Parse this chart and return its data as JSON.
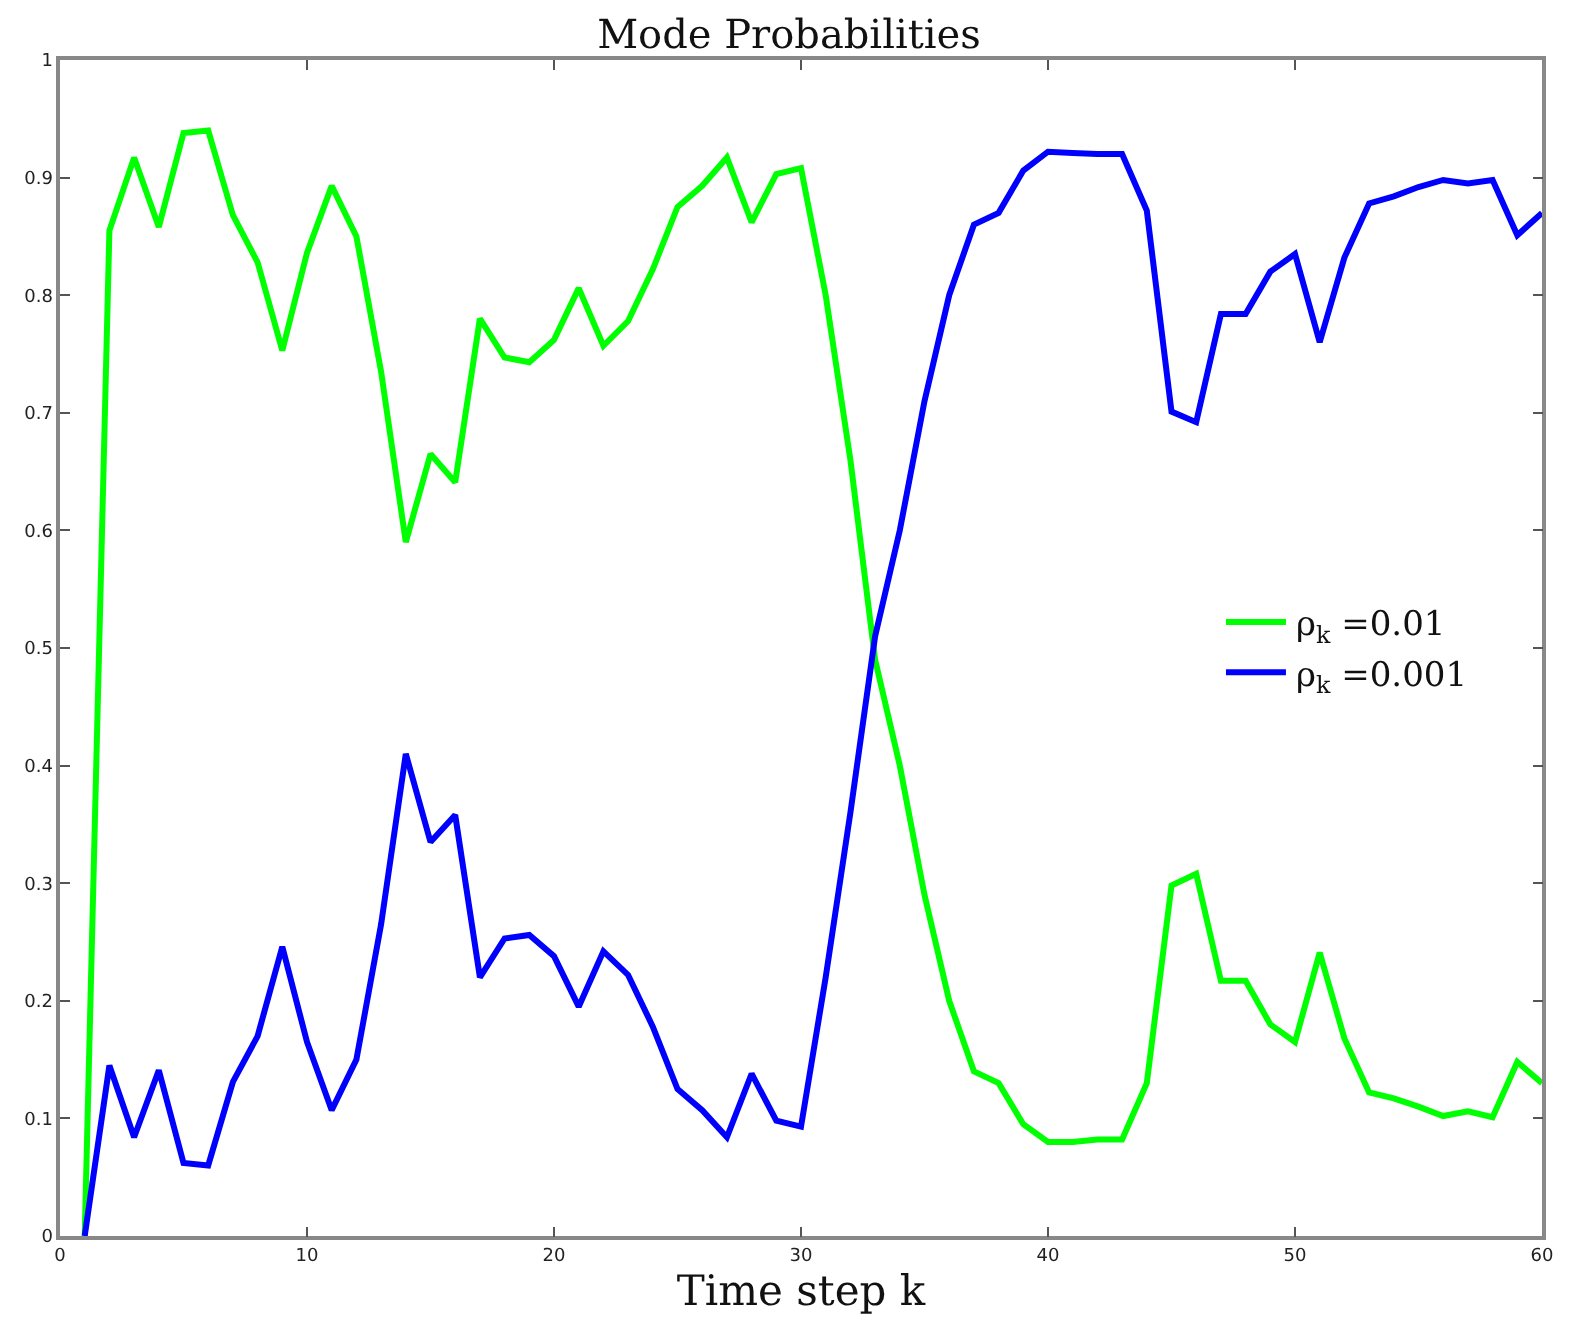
{
  "chart_data": {
    "type": "line",
    "title": "Mode Probabilities",
    "xlabel": "Time step k",
    "x": [
      1,
      2,
      3,
      4,
      5,
      6,
      7,
      8,
      9,
      10,
      11,
      12,
      13,
      14,
      15,
      16,
      17,
      18,
      19,
      20,
      21,
      22,
      23,
      24,
      25,
      26,
      27,
      28,
      29,
      30,
      31,
      32,
      33,
      34,
      35,
      36,
      37,
      38,
      39,
      40,
      41,
      42,
      43,
      44,
      45,
      46,
      47,
      48,
      49,
      50,
      51,
      52,
      53,
      54,
      55,
      56,
      57,
      58,
      59,
      60
    ],
    "series": [
      {
        "name": "ρ$_{k}$ =0.01",
        "color": "#00ff00",
        "values": [
          0,
          0.855,
          0.917,
          0.858,
          0.938,
          0.94,
          0.868,
          0.828,
          0.753,
          0.836,
          0.893,
          0.85,
          0.735,
          0.59,
          0.665,
          0.641,
          0.78,
          0.747,
          0.743,
          0.762,
          0.806,
          0.757,
          0.778,
          0.822,
          0.875,
          0.893,
          0.917,
          0.862,
          0.903,
          0.908,
          0.8,
          0.66,
          0.49,
          0.4,
          0.29,
          0.2,
          0.14,
          0.13,
          0.095,
          0.08,
          0.08,
          0.082,
          0.082,
          0.13,
          0.298,
          0.308,
          0.217,
          0.217,
          0.18,
          0.165,
          0.241,
          0.168,
          0.122,
          0.117,
          0.11,
          0.102,
          0.106,
          0.101,
          0.148,
          0.13
        ]
      },
      {
        "name": "ρ$_{k}$ =0.001",
        "color": "#0000ff",
        "values": [
          0,
          0.145,
          0.084,
          0.141,
          0.062,
          0.06,
          0.131,
          0.17,
          0.246,
          0.165,
          0.107,
          0.15,
          0.265,
          0.41,
          0.335,
          0.358,
          0.22,
          0.253,
          0.256,
          0.238,
          0.195,
          0.242,
          0.222,
          0.178,
          0.125,
          0.107,
          0.084,
          0.138,
          0.098,
          0.093,
          0.22,
          0.36,
          0.51,
          0.6,
          0.71,
          0.8,
          0.86,
          0.87,
          0.906,
          0.922,
          0.921,
          0.92,
          0.92,
          0.872,
          0.701,
          0.692,
          0.784,
          0.784,
          0.82,
          0.835,
          0.76,
          0.832,
          0.878,
          0.884,
          0.892,
          0.898,
          0.895,
          0.898,
          0.851,
          0.87
        ]
      }
    ],
    "xlim": [
      0,
      60
    ],
    "xticks": [
      0,
      10,
      20,
      30,
      40,
      50,
      60
    ],
    "ylim": [
      0,
      1
    ],
    "yticks": [
      0,
      0.1,
      0.2,
      0.3,
      0.4,
      0.5,
      0.6,
      0.7,
      0.8,
      0.9,
      1
    ],
    "legend": "right",
    "marker": "none",
    "line_style": "solid"
  }
}
